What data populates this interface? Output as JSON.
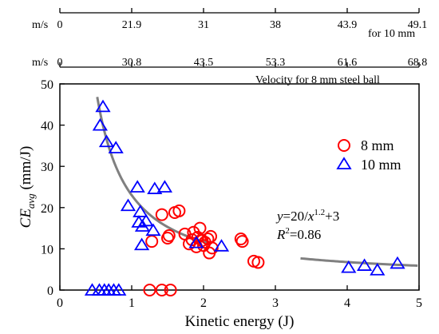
{
  "chart_data": {
    "type": "scatter",
    "xlabel": "Kinetic energy (J)",
    "ylabel": {
      "main": "CE",
      "sub": "avg",
      "unit": " (mm/J)"
    },
    "xlim": [
      0,
      5
    ],
    "ylim": [
      0,
      50
    ],
    "x_ticks": [
      0,
      1,
      2,
      3,
      4,
      5
    ],
    "y_ticks": [
      0,
      10,
      20,
      30,
      40,
      50
    ],
    "top_axes": [
      {
        "unit_label": "m/s",
        "caption": "for 10 mm",
        "ticks": [
          {
            "x": 0,
            "label": "0"
          },
          {
            "x": 1,
            "label": "21.9"
          },
          {
            "x": 2,
            "label": "31"
          },
          {
            "x": 3,
            "label": "38"
          },
          {
            "x": 4,
            "label": "43.9"
          },
          {
            "x": 5,
            "label": "49.1"
          }
        ]
      },
      {
        "unit_label": "m/s",
        "caption": "Velocity for 8 mm steel ball",
        "ticks": [
          {
            "x": 0,
            "label": "0"
          },
          {
            "x": 1,
            "label": "30.8"
          },
          {
            "x": 2,
            "label": "43.5"
          },
          {
            "x": 3,
            "label": "53.3"
          },
          {
            "x": 4,
            "label": "61.6"
          },
          {
            "x": 5,
            "label": "68.8"
          }
        ]
      }
    ],
    "series": [
      {
        "name": "8 mm",
        "marker": "circle",
        "color": "#ff0000",
        "points": [
          [
            1.28,
            11.8
          ],
          [
            1.42,
            18.3
          ],
          [
            1.5,
            12.6
          ],
          [
            1.52,
            13.2
          ],
          [
            1.6,
            18.8
          ],
          [
            1.66,
            19.2
          ],
          [
            1.74,
            13.6
          ],
          [
            1.8,
            11.2
          ],
          [
            1.84,
            12.2
          ],
          [
            1.86,
            14.0
          ],
          [
            1.9,
            10.5
          ],
          [
            1.92,
            12.8
          ],
          [
            1.95,
            15.0
          ],
          [
            1.98,
            12.0
          ],
          [
            2.0,
            10.8
          ],
          [
            2.02,
            11.6
          ],
          [
            2.06,
            12.4
          ],
          [
            2.08,
            9.0
          ],
          [
            2.1,
            13.0
          ],
          [
            2.12,
            10.2
          ],
          [
            2.52,
            12.4
          ],
          [
            2.54,
            11.8
          ],
          [
            2.7,
            7.0
          ],
          [
            2.76,
            6.7
          ],
          [
            1.25,
            0.0
          ],
          [
            1.42,
            0.0
          ],
          [
            1.54,
            0.0
          ]
        ]
      },
      {
        "name": "10 mm",
        "marker": "triangle",
        "color": "#0000ff",
        "points": [
          [
            0.6,
            44.5
          ],
          [
            0.56,
            40.0
          ],
          [
            0.65,
            36.0
          ],
          [
            0.78,
            34.5
          ],
          [
            0.95,
            20.5
          ],
          [
            1.08,
            25.0
          ],
          [
            1.1,
            16.5
          ],
          [
            1.12,
            19.0
          ],
          [
            1.14,
            11.0
          ],
          [
            1.15,
            15.5
          ],
          [
            1.2,
            16.8
          ],
          [
            1.3,
            14.5
          ],
          [
            1.32,
            24.6
          ],
          [
            1.46,
            25.0
          ],
          [
            1.9,
            11.5
          ],
          [
            2.25,
            10.7
          ],
          [
            4.02,
            5.5
          ],
          [
            4.24,
            6.0
          ],
          [
            4.42,
            4.9
          ],
          [
            4.7,
            6.5
          ],
          [
            0.45,
            0.0
          ],
          [
            0.55,
            0.0
          ],
          [
            0.62,
            0.0
          ],
          [
            0.68,
            0.0
          ],
          [
            0.75,
            0.0
          ],
          [
            0.82,
            0.0
          ]
        ]
      }
    ],
    "fit": {
      "equation": "y=20/x^1.2+3",
      "eq_parts": {
        "y": "y",
        "body": "=20/",
        "x": "x",
        "exp": "1.2",
        "tail": "+3"
      },
      "r2": {
        "r": "R",
        "two": "2",
        "value": "=0.86"
      },
      "color": "#808080",
      "segments": [
        [
          0.52,
          2.1
        ],
        [
          3.35,
          4.98
        ]
      ]
    }
  }
}
